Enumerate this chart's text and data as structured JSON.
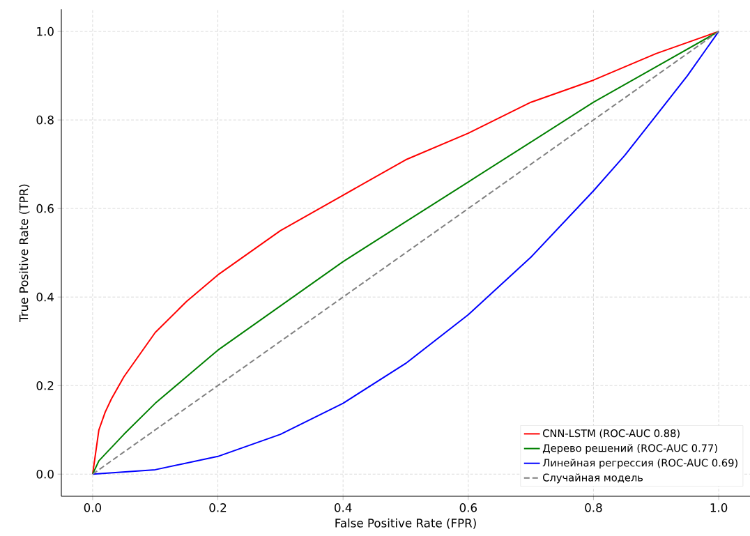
{
  "chart_data": {
    "type": "line",
    "xlabel": "False Positive Rate (FPR)",
    "ylabel": "True Positive Rate (TPR)",
    "xlim": [
      -0.05,
      1.05
    ],
    "ylim": [
      -0.05,
      1.05
    ],
    "xticks": [
      {
        "value": 0,
        "label": "0.0"
      },
      {
        "value": 0.2,
        "label": "0.2"
      },
      {
        "value": 0.4,
        "label": "0.4"
      },
      {
        "value": 0.6,
        "label": "0.6"
      },
      {
        "value": 0.8,
        "label": "0.8"
      },
      {
        "value": 1,
        "label": "1.0"
      }
    ],
    "yticks": [
      {
        "value": 0,
        "label": "0.0"
      },
      {
        "value": 0.2,
        "label": "0.2"
      },
      {
        "value": 0.4,
        "label": "0.4"
      },
      {
        "value": 0.6,
        "label": "0.6"
      },
      {
        "value": 0.8,
        "label": "0.8"
      },
      {
        "value": 1,
        "label": "1.0"
      }
    ],
    "grid": true,
    "legend": "bottom right",
    "line_style": "solid",
    "series": [
      {
        "name": "CNN-LSTM (ROC-AUC 0.88)",
        "color": "#ff0000",
        "x": [
          0,
          0.01,
          0.02,
          0.03,
          0.05,
          0.075,
          0.1,
          0.15,
          0.2,
          0.25,
          0.3,
          0.4,
          0.5,
          0.6,
          0.7,
          0.8,
          0.9,
          1.0
        ],
        "values": [
          0,
          0.1,
          0.14,
          0.17,
          0.22,
          0.27,
          0.32,
          0.39,
          0.45,
          0.5,
          0.55,
          0.63,
          0.71,
          0.77,
          0.84,
          0.89,
          0.95,
          1.0
        ]
      },
      {
        "name": "Дерево решений (ROC-AUC 0.77)",
        "color": "#008000",
        "x": [
          0,
          0.01,
          0.05,
          0.1,
          0.15,
          0.2,
          0.3,
          0.4,
          0.5,
          0.6,
          0.7,
          0.8,
          0.9,
          1.0
        ],
        "values": [
          0,
          0.03,
          0.09,
          0.16,
          0.22,
          0.28,
          0.38,
          0.48,
          0.57,
          0.66,
          0.75,
          0.84,
          0.92,
          1.0
        ]
      },
      {
        "name": "Линейная регрессия (ROC-AUC 0.69)",
        "color": "#0000ff",
        "x": [
          0,
          0.1,
          0.2,
          0.3,
          0.4,
          0.5,
          0.6,
          0.7,
          0.8,
          0.85,
          0.9,
          0.95,
          1.0
        ],
        "values": [
          0,
          0.01,
          0.04,
          0.09,
          0.16,
          0.25,
          0.36,
          0.49,
          0.64,
          0.72,
          0.81,
          0.9,
          1.0
        ]
      },
      {
        "name": "Случайная модель",
        "color": "#808080",
        "line_style": "dashed",
        "x": [
          0,
          1
        ],
        "values": [
          0,
          1
        ]
      }
    ]
  }
}
